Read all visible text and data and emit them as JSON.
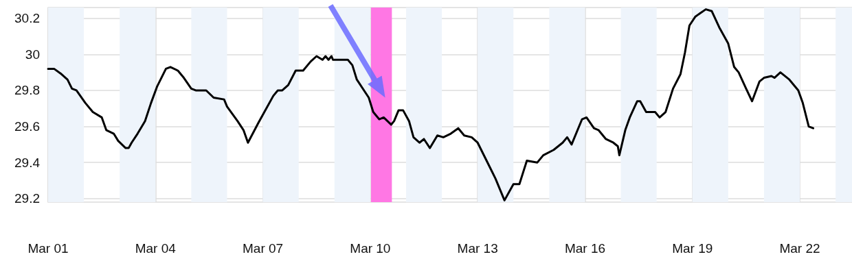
{
  "chart_data": {
    "type": "line",
    "x": [
      "--03-01T00:00",
      "--03-01T04:00",
      "--03-01T09:00",
      "--03-01T13:00",
      "--03-01T16:00",
      "--03-01T19:00",
      "--03-02T01:00",
      "--03-02T06:00",
      "--03-02T12:00",
      "--03-02T15:00",
      "--03-02T20:00",
      "--03-02T23:00",
      "--03-03T04:00",
      "--03-03T06:00",
      "--03-03T08:00",
      "--03-03T12:00",
      "--03-03T17:00",
      "--03-03T21:00",
      "--03-04T01:00",
      "--03-04T07:00",
      "--03-04T10:00",
      "--03-04T15:00",
      "--03-04T19:00",
      "--03-05T00:00",
      "--03-05T03:00",
      "--03-05T10:00",
      "--03-05T15:00",
      "--03-05T22:00",
      "--03-06T00:00",
      "--03-06T07:00",
      "--03-06T11:00",
      "--03-06T14:00",
      "--03-06T21:00",
      "--03-07T01:00",
      "--03-07T07:00",
      "--03-07T10:00",
      "--03-07T13:00",
      "--03-07T17:00",
      "--03-07T22:00",
      "--03-08T03:00",
      "--03-08T08:00",
      "--03-08T12:00",
      "--03-08T16:00",
      "--03-08T18:00",
      "--03-08T20:00",
      "--03-08T22:00",
      "--03-08T23:00",
      "--03-09T09:00",
      "--03-09T12:00",
      "--03-09T15:00",
      "--03-09T23:00",
      "--03-10T02:00",
      "--03-10T06:00",
      "--03-10T09:00",
      "--03-10T14:00",
      "--03-10T16:00",
      "--03-10T19:00",
      "--03-10T22:00",
      "--03-11T02:00",
      "--03-11T05:00",
      "--03-11T09:00",
      "--03-11T12:00",
      "--03-11T16:00",
      "--03-11T21:00",
      "--03-12T01:00",
      "--03-12T06:00",
      "--03-12T11:00",
      "--03-12T15:00",
      "--03-12T20:00",
      "--03-13T00:00",
      "--03-13T06:00",
      "--03-13T12:00",
      "--03-13T18:00",
      "--03-14T00:00",
      "--03-14T04:00",
      "--03-14T09:00",
      "--03-14T16:00",
      "--03-14T20:00",
      "--03-15T03:00",
      "--03-15T09:00",
      "--03-15T12:00",
      "--03-15T15:00",
      "--03-15T22:00",
      "--03-16T01:00",
      "--03-16T06:00",
      "--03-16T09:00",
      "--03-16T14:00",
      "--03-16T19:00",
      "--03-16T22:00",
      "--03-16T23:00",
      "--03-17T03:00",
      "--03-17T06:00",
      "--03-17T11:00",
      "--03-17T13:00",
      "--03-17T17:00",
      "--03-17T23:00",
      "--03-18T02:00",
      "--03-18T06:00",
      "--03-18T11:00",
      "--03-18T16:00",
      "--03-18T19:00",
      "--03-18T22:00",
      "--03-19T02:00",
      "--03-19T09:00",
      "--03-19T13:00",
      "--03-19T18:00",
      "--03-20T00:00",
      "--03-20T04:00",
      "--03-20T07:00",
      "--03-20T12:00",
      "--03-20T16:00",
      "--03-20T21:00",
      "--03-21T00:00",
      "--03-21T05:00",
      "--03-21T07:00",
      "--03-21T11:00",
      "--03-21T17:00",
      "--03-21T23:00",
      "--03-22T02:00",
      "--03-22T06:00",
      "--03-22T09:00"
    ],
    "series": [
      {
        "color": "#000000",
        "values": [
          29.92,
          29.92,
          29.89,
          29.86,
          29.81,
          29.8,
          29.73,
          29.68,
          29.65,
          29.58,
          29.56,
          29.52,
          29.48,
          29.48,
          29.51,
          29.56,
          29.63,
          29.73,
          29.82,
          29.92,
          29.93,
          29.91,
          29.87,
          29.81,
          29.8,
          29.8,
          29.76,
          29.75,
          29.71,
          29.63,
          29.58,
          29.51,
          29.62,
          29.68,
          29.77,
          29.8,
          29.8,
          29.83,
          29.91,
          29.91,
          29.96,
          29.99,
          29.97,
          29.99,
          29.97,
          29.99,
          29.97,
          29.97,
          29.94,
          29.86,
          29.76,
          29.68,
          29.64,
          29.65,
          29.61,
          29.63,
          29.69,
          29.69,
          29.63,
          29.54,
          29.51,
          29.53,
          29.48,
          29.55,
          29.54,
          29.56,
          29.59,
          29.55,
          29.54,
          29.51,
          29.41,
          29.31,
          29.19,
          29.28,
          29.28,
          29.41,
          29.4,
          29.44,
          29.47,
          29.51,
          29.54,
          29.5,
          29.64,
          29.65,
          29.59,
          29.58,
          29.53,
          29.51,
          29.49,
          29.44,
          29.58,
          29.65,
          29.74,
          29.74,
          29.68,
          29.68,
          29.65,
          29.68,
          29.81,
          29.89,
          30.01,
          30.16,
          30.21,
          30.25,
          30.24,
          30.15,
          30.06,
          29.93,
          29.9,
          29.81,
          29.74,
          29.85,
          29.87,
          29.88,
          29.87,
          29.9,
          29.86,
          29.8,
          29.73,
          29.6,
          29.59
        ]
      }
    ],
    "xlim": [
      "--03-01T00:00",
      "--03-23T11:00"
    ],
    "xticks": [
      {
        "value": "--03-01",
        "label": "Mar 01"
      },
      {
        "value": "--03-04",
        "label": "Mar 04"
      },
      {
        "value": "--03-07",
        "label": "Mar 07"
      },
      {
        "value": "--03-10",
        "label": "Mar 10"
      },
      {
        "value": "--03-13",
        "label": "Mar 13"
      },
      {
        "value": "--03-16",
        "label": "Mar 16"
      },
      {
        "value": "--03-19",
        "label": "Mar 19"
      },
      {
        "value": "--03-22",
        "label": "Mar 22"
      }
    ],
    "ylim": [
      29.18,
      30.26
    ],
    "yticks": [
      29.2,
      29.4,
      29.6,
      29.8,
      {
        "value": 30,
        "label": "30"
      },
      30.2
    ],
    "grid": true,
    "marker": "none",
    "line_style": "solid",
    "bands": [
      {
        "axis": "x",
        "from": "--03-01",
        "to": "--03-02",
        "color": "#eef4fb"
      },
      {
        "axis": "x",
        "from": "--03-03",
        "to": "--03-04",
        "color": "#eef4fb"
      },
      {
        "axis": "x",
        "from": "--03-05",
        "to": "--03-06",
        "color": "#eef4fb"
      },
      {
        "axis": "x",
        "from": "--03-07",
        "to": "--03-08",
        "color": "#eef4fb"
      },
      {
        "axis": "x",
        "from": "--03-09",
        "to": "--03-10",
        "color": "#eef4fb"
      },
      {
        "axis": "x",
        "from": "--03-11",
        "to": "--03-12",
        "color": "#eef4fb"
      },
      {
        "axis": "x",
        "from": "--03-13",
        "to": "--03-14",
        "color": "#eef4fb"
      },
      {
        "axis": "x",
        "from": "--03-15",
        "to": "--03-16",
        "color": "#eef4fb"
      },
      {
        "axis": "x",
        "from": "--03-17",
        "to": "--03-18",
        "color": "#eef4fb"
      },
      {
        "axis": "x",
        "from": "--03-19",
        "to": "--03-20",
        "color": "#eef4fb"
      },
      {
        "axis": "x",
        "from": "--03-21",
        "to": "--03-22",
        "color": "#eef4fb"
      },
      {
        "axis": "x",
        "from": "--03-23",
        "to": "--03-23T11:00",
        "color": "#eef4fb"
      },
      {
        "axis": "x",
        "from": "--03-10T00:30",
        "to": "--03-10T14:30",
        "color": "#ff77e4"
      }
    ]
  }
}
